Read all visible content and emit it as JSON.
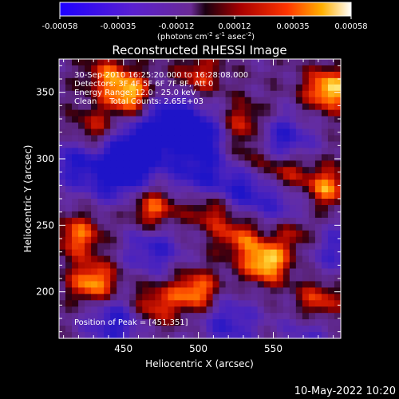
{
  "chart_data": {
    "type": "heatmap",
    "title": "Reconstructed RHESSI Image",
    "xlabel": "Heliocentric X (arcsec)",
    "ylabel": "Heliocentric Y (arcsec)",
    "xlim": [
      407,
      595
    ],
    "ylim": [
      165,
      375
    ],
    "xticks": [
      450,
      500,
      550
    ],
    "yticks": [
      200,
      250,
      300,
      350
    ],
    "colorbar": {
      "range": [
        -0.00058,
        0.00058
      ],
      "ticks": [
        "-0.00058",
        "-0.00035",
        "-0.00012",
        "0.00012",
        "0.00035",
        "0.00058"
      ],
      "label_prefix": "(photons cm",
      "label_exp1": "-2",
      "label_mid": " s",
      "label_exp2": "-1",
      "label_mid2": " asec",
      "label_exp3": "-2",
      "label_suffix": ")"
    },
    "annotations": {
      "time_range": "30-Sep-2010 16:25:20.000 to 16:28:08.000",
      "detectors": "Detectors: 3F 4F 5F 6F 7F 8F, Att 0",
      "energy_range": "Energy Range: 12.0 - 25.0 keV",
      "clean": "Clean     Total Counts: 2.65E+03",
      "peak": "Position of Peak = [451,351]"
    },
    "peak_position": [
      451,
      351
    ],
    "hot_spots": [
      {
        "x": 587,
        "y": 352,
        "intensity": 1.0
      },
      {
        "x": 545,
        "y": 222,
        "intensity": 1.0
      },
      {
        "x": 455,
        "y": 347,
        "intensity": 0.9
      },
      {
        "x": 430,
        "y": 207,
        "intensity": 0.9
      },
      {
        "x": 498,
        "y": 200,
        "intensity": 0.85
      },
      {
        "x": 470,
        "y": 262,
        "intensity": 0.75
      },
      {
        "x": 420,
        "y": 242,
        "intensity": 0.7
      },
      {
        "x": 585,
        "y": 278,
        "intensity": 0.8
      },
      {
        "x": 557,
        "y": 292,
        "intensity": 0.7
      },
      {
        "x": 508,
        "y": 262,
        "intensity": 0.6
      },
      {
        "x": 580,
        "y": 192,
        "intensity": 0.7
      },
      {
        "x": 470,
        "y": 190,
        "intensity": 0.65
      },
      {
        "x": 530,
        "y": 327,
        "intensity": 0.6
      },
      {
        "x": 500,
        "y": 362,
        "intensity": 0.55
      },
      {
        "x": 430,
        "y": 322,
        "intensity": 0.5
      },
      {
        "x": 527,
        "y": 242,
        "intensity": 0.6
      },
      {
        "x": 440,
        "y": 362,
        "intensity": 0.6
      },
      {
        "x": 535,
        "y": 302,
        "intensity": 0.5
      },
      {
        "x": 565,
        "y": 245,
        "intensity": 0.6
      }
    ],
    "cold_spots": [
      {
        "x": 460,
        "y": 307,
        "intensity": -1.0
      },
      {
        "x": 500,
        "y": 317,
        "intensity": -0.8
      },
      {
        "x": 445,
        "y": 287,
        "intensity": -0.8
      },
      {
        "x": 530,
        "y": 277,
        "intensity": -0.7
      },
      {
        "x": 555,
        "y": 312,
        "intensity": -0.8
      },
      {
        "x": 500,
        "y": 287,
        "intensity": -0.6
      },
      {
        "x": 470,
        "y": 232,
        "intensity": -0.6
      },
      {
        "x": 445,
        "y": 177,
        "intensity": -0.7
      },
      {
        "x": 520,
        "y": 177,
        "intensity": -0.6
      },
      {
        "x": 590,
        "y": 232,
        "intensity": -0.5
      },
      {
        "x": 480,
        "y": 332,
        "intensity": -0.7
      },
      {
        "x": 415,
        "y": 297,
        "intensity": -0.6
      },
      {
        "x": 560,
        "y": 262,
        "intensity": -0.5
      },
      {
        "x": 575,
        "y": 172,
        "intensity": -0.4
      }
    ]
  },
  "footer": {
    "timestamp": "10-May-2022 10:20"
  }
}
